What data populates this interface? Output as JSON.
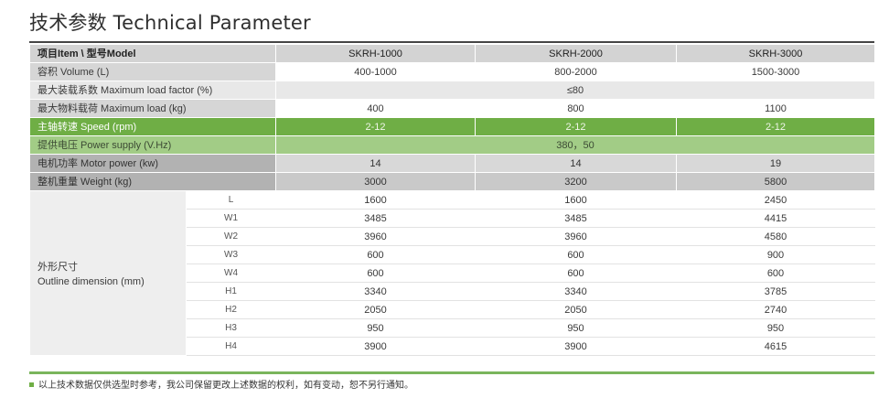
{
  "title": "技术参数 Technical Parameter",
  "header": {
    "label": "项目Item \\ 型号Model",
    "models": [
      "SKRH-1000",
      "SKRH-2000",
      "SKRH-3000"
    ]
  },
  "rows": {
    "volume": {
      "label": "容积 Volume (L)",
      "values": [
        "400-1000",
        "800-2000",
        "1500-3000"
      ]
    },
    "load_factor": {
      "label": "最大装载系数 Maximum load factor (%)",
      "value": "≤80"
    },
    "max_load": {
      "label": "最大物料载荷 Maximum load (kg)",
      "values": [
        "400",
        "800",
        "1100"
      ]
    },
    "speed": {
      "label": "主轴转速 Speed (rpm)",
      "values": [
        "2-12",
        "2-12",
        "2-12"
      ]
    },
    "power_supply": {
      "label": "提供电压 Power supply (V.Hz)",
      "value": "380，50"
    },
    "motor_power": {
      "label": "电机功率 Motor power (kw)",
      "values": [
        "14",
        "14",
        "19"
      ]
    },
    "weight": {
      "label": "整机重量 Weight (kg)",
      "values": [
        "3000",
        "3200",
        "5800"
      ]
    }
  },
  "dimension": {
    "label_cn": "外形尺寸",
    "label_en": "Outline dimension (mm)",
    "rows": [
      {
        "name": "L",
        "values": [
          "1600",
          "1600",
          "2450"
        ]
      },
      {
        "name": "W1",
        "values": [
          "3485",
          "3485",
          "4415"
        ]
      },
      {
        "name": "W2",
        "values": [
          "3960",
          "3960",
          "4580"
        ]
      },
      {
        "name": "W3",
        "values": [
          "600",
          "600",
          "900"
        ]
      },
      {
        "name": "W4",
        "values": [
          "600",
          "600",
          "600"
        ]
      },
      {
        "name": "H1",
        "values": [
          "3340",
          "3340",
          "3785"
        ]
      },
      {
        "name": "H2",
        "values": [
          "2050",
          "2050",
          "2740"
        ]
      },
      {
        "name": "H3",
        "values": [
          "950",
          "950",
          "950"
        ]
      },
      {
        "name": "H4",
        "values": [
          "3900",
          "3900",
          "4615"
        ]
      }
    ]
  },
  "footnote": "以上技术数据仅供选型时参考，我公司保留更改上述数据的权利，如有变动，恕不另行通知。",
  "colors": {
    "green": "#6fae45",
    "light_green": "#a2cc86",
    "gray": "#d3d3d3",
    "dark_gray": "#b2b2b2"
  }
}
